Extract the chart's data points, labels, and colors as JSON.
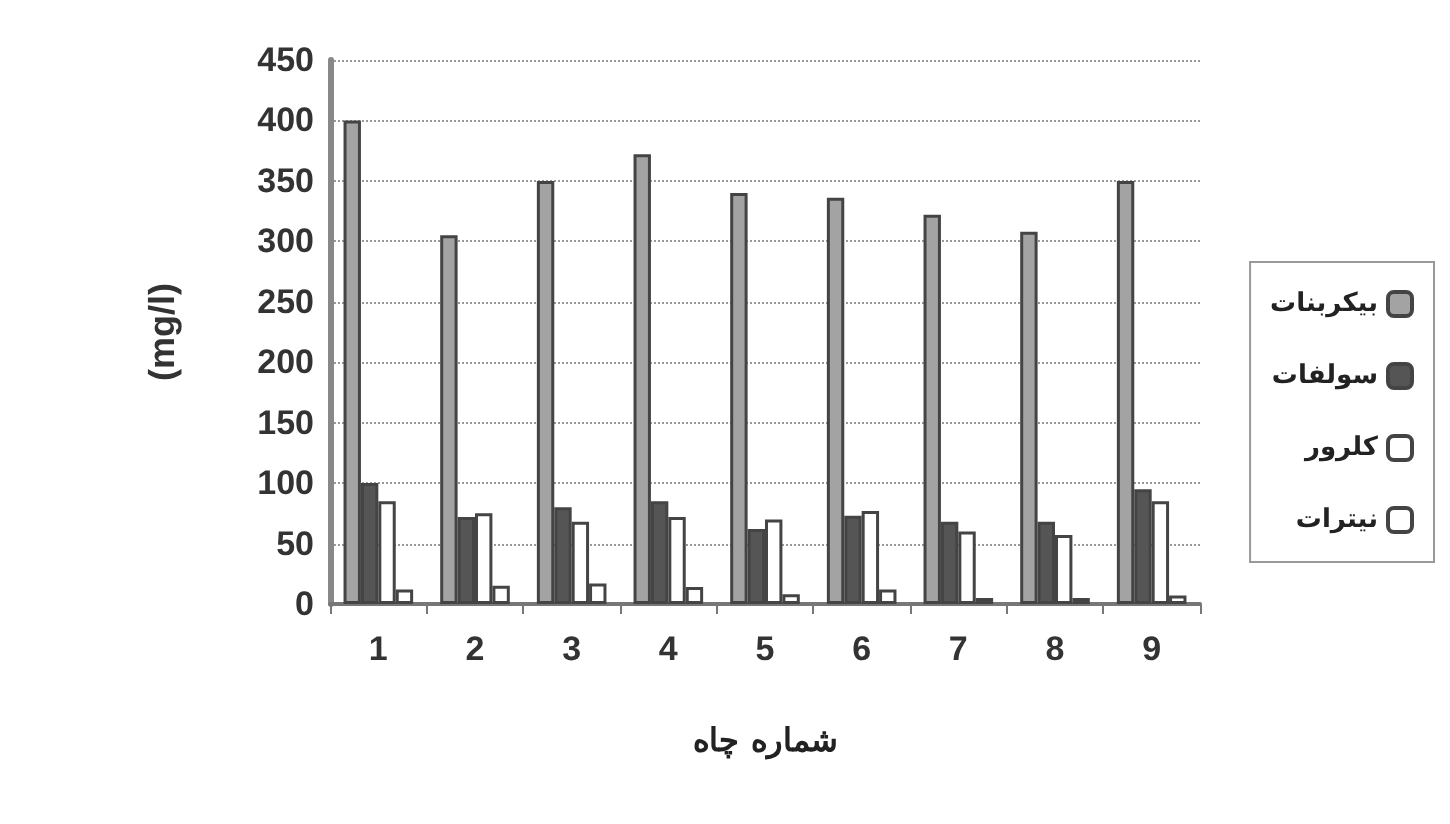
{
  "chart_data": {
    "type": "bar",
    "xlabel": "شماره چاه",
    "ylabel": "(mg/l)",
    "categories": [
      "1",
      "2",
      "3",
      "4",
      "5",
      "6",
      "7",
      "8",
      "9"
    ],
    "series": [
      {
        "name": "بیکربنات",
        "color": "#a3a3a3",
        "values": [
          400,
          305,
          350,
          372,
          340,
          336,
          322,
          308,
          350
        ]
      },
      {
        "name": "سولفات",
        "color": "#555555",
        "values": [
          100,
          72,
          80,
          85,
          62,
          73,
          68,
          68,
          95
        ]
      },
      {
        "name": "کلرور",
        "color": "#ffffff",
        "values": [
          85,
          75,
          68,
          72,
          70,
          77,
          60,
          57,
          85
        ]
      },
      {
        "name": "نیترات",
        "color": "#ffffff",
        "values": [
          12,
          15,
          17,
          14,
          8,
          12,
          5,
          5,
          7
        ]
      }
    ],
    "ylim": [
      0,
      450
    ],
    "yticks": [
      0,
      50,
      100,
      150,
      200,
      250,
      300,
      350,
      400,
      450
    ],
    "grid": "y",
    "legend": "right"
  }
}
